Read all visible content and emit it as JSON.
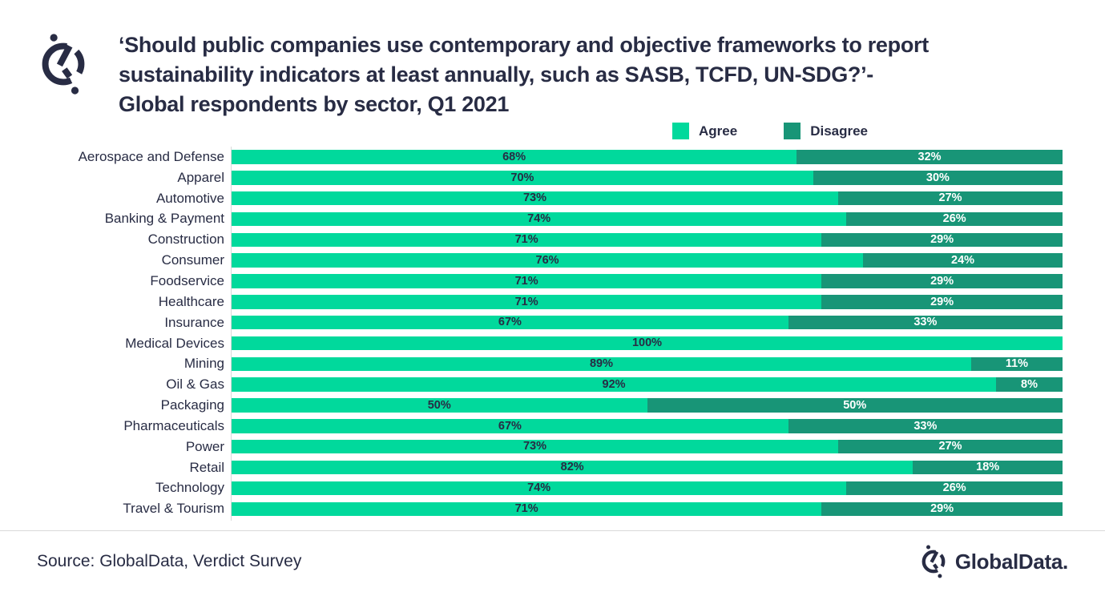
{
  "header": {
    "title_lines": [
      "‘Should public companies use contemporary and objective frameworks to report",
      "sustainability indicators at least annually, such as SASB, TCFD, UN-SDG?’-",
      "Global respondents by sector, Q1 2021"
    ]
  },
  "legend": {
    "items": [
      {
        "label": "Agree",
        "color": "#01d99c"
      },
      {
        "label": "Disagree",
        "color": "#189577"
      }
    ]
  },
  "chart_data": {
    "type": "bar",
    "orientation": "horizontal-stacked",
    "title": "‘Should public companies use contemporary and objective frameworks to report sustainability indicators at least annually, such as SASB, TCFD, UN-SDG?’- Global respondents by sector, Q1 2021",
    "categories": [
      "Aerospace and Defense",
      "Apparel",
      "Automotive",
      "Banking & Payment",
      "Construction",
      "Consumer",
      "Foodservice",
      "Healthcare",
      "Insurance",
      "Medical Devices",
      "Mining",
      "Oil & Gas",
      "Packaging",
      "Pharmaceuticals",
      "Power",
      "Retail",
      "Technology",
      "Travel & Tourism"
    ],
    "series": [
      {
        "name": "Agree",
        "color": "#01d99c",
        "values": [
          68,
          70,
          73,
          74,
          71,
          76,
          71,
          71,
          67,
          100,
          89,
          92,
          50,
          67,
          73,
          82,
          74,
          71
        ]
      },
      {
        "name": "Disagree",
        "color": "#189577",
        "values": [
          32,
          30,
          27,
          26,
          29,
          24,
          29,
          29,
          33,
          0,
          11,
          8,
          50,
          33,
          27,
          18,
          26,
          29
        ]
      }
    ],
    "value_suffix": "%",
    "xlim": [
      0,
      100
    ],
    "grid": false,
    "legend_position": "top"
  },
  "footer": {
    "source": "Source: GlobalData, Verdict Survey",
    "brand": "GlobalData."
  },
  "colors": {
    "text": "#282c44",
    "agree": "#01d99c",
    "disagree": "#189577",
    "axis_line": "#d9d9d9"
  }
}
